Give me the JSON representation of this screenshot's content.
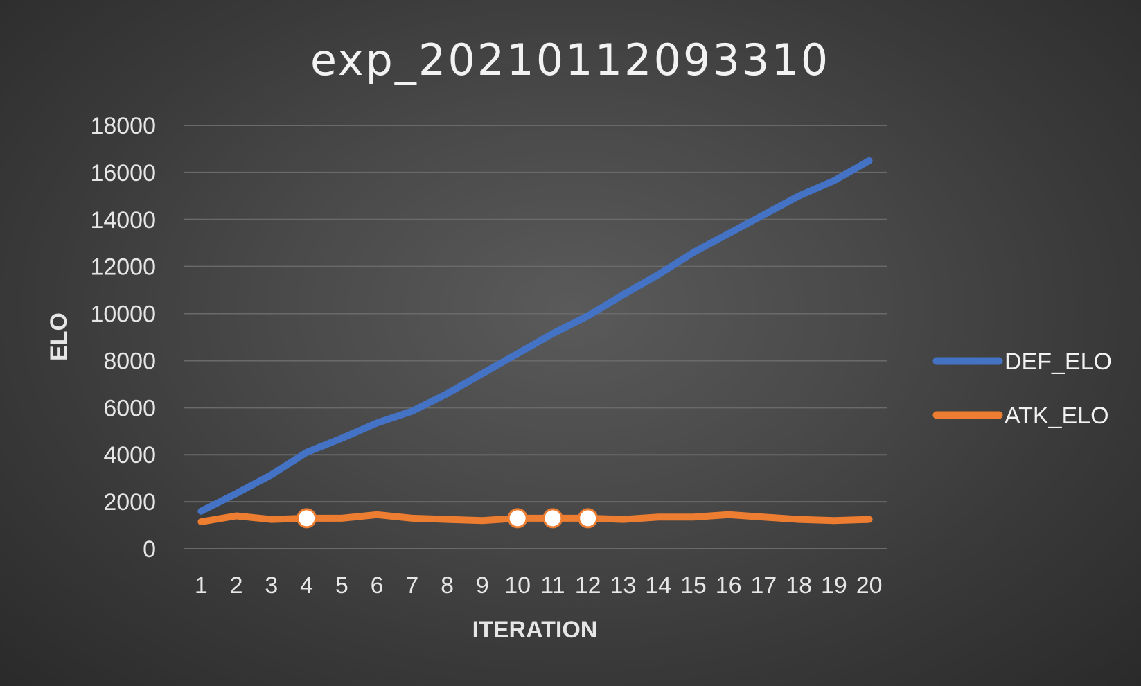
{
  "chart_data": {
    "type": "line",
    "title": "exp_20210112093310",
    "xlabel": "ITERATION",
    "ylabel": "ELO",
    "x": [
      1,
      2,
      3,
      4,
      5,
      6,
      7,
      8,
      9,
      10,
      11,
      12,
      13,
      14,
      15,
      16,
      17,
      18,
      19,
      20
    ],
    "y_ticks": [
      0,
      2000,
      4000,
      6000,
      8000,
      10000,
      12000,
      14000,
      16000,
      18000
    ],
    "ylim": [
      0,
      18000
    ],
    "grid": true,
    "legend_position": "right",
    "series": [
      {
        "name": "DEF_ELO",
        "color": "#4472c4",
        "values": [
          1600,
          2350,
          3150,
          4100,
          4700,
          5350,
          5850,
          6600,
          7450,
          8300,
          9150,
          9900,
          10800,
          11650,
          12600,
          13400,
          14200,
          15000,
          15650,
          16500
        ]
      },
      {
        "name": "ATK_ELO",
        "color": "#ed7d31",
        "values": [
          1150,
          1400,
          1250,
          1300,
          1300,
          1450,
          1300,
          1250,
          1200,
          1300,
          1300,
          1300,
          1250,
          1350,
          1350,
          1450,
          1350,
          1250,
          1200,
          1250
        ],
        "highlighted_points": [
          4,
          10,
          11,
          12
        ]
      }
    ]
  }
}
